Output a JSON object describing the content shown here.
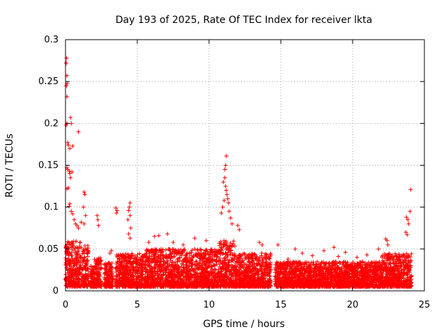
{
  "chart_data": {
    "type": "scatter",
    "title": "Day 193 of 2025, Rate Of TEC Index for receiver lkta",
    "xlabel": "GPS time / hours",
    "ylabel": "ROTI / TECUs",
    "xlim": [
      0,
      25
    ],
    "ylim": [
      0,
      0.3
    ],
    "x_ticks": [
      0,
      5,
      10,
      15,
      20,
      25
    ],
    "x_tick_labels": [
      "0",
      "5",
      "10",
      "15",
      "20",
      "25"
    ],
    "y_ticks": [
      0,
      0.05,
      0.1,
      0.15,
      0.2,
      0.25,
      0.3
    ],
    "y_tick_labels": [
      "0",
      "0.05",
      "0.1",
      "0.15",
      "0.2",
      "0.25",
      "0.3"
    ],
    "grid": true,
    "marker": "+",
    "color": "#ff0000",
    "series": [
      {
        "name": "ROTI",
        "points": [
          [
            0.05,
            0.272
          ],
          [
            0.08,
            0.278
          ],
          [
            0.1,
            0.257
          ],
          [
            0.12,
            0.248
          ],
          [
            0.06,
            0.245
          ],
          [
            0.1,
            0.232
          ],
          [
            0.05,
            0.198
          ],
          [
            0.1,
            0.2
          ],
          [
            0.15,
            0.177
          ],
          [
            0.2,
            0.174
          ],
          [
            0.3,
            0.17
          ],
          [
            0.35,
            0.207
          ],
          [
            0.4,
            0.2
          ],
          [
            0.5,
            0.173
          ],
          [
            0.9,
            0.19
          ],
          [
            0.1,
            0.147
          ],
          [
            0.15,
            0.145
          ],
          [
            0.25,
            0.143
          ],
          [
            0.3,
            0.14
          ],
          [
            0.35,
            0.135
          ],
          [
            0.45,
            0.142
          ],
          [
            0.2,
            0.123
          ],
          [
            0.1,
            0.122
          ],
          [
            0.3,
            0.104
          ],
          [
            0.25,
            0.101
          ],
          [
            0.4,
            0.095
          ],
          [
            0.5,
            0.092
          ],
          [
            0.6,
            0.085
          ],
          [
            0.7,
            0.08
          ],
          [
            0.8,
            0.078
          ],
          [
            0.9,
            0.075
          ],
          [
            1.1,
            0.082
          ],
          [
            1.3,
            0.118
          ],
          [
            1.35,
            0.115
          ],
          [
            1.25,
            0.1
          ],
          [
            1.4,
            0.09
          ],
          [
            1.3,
            0.08
          ],
          [
            2.2,
            0.09
          ],
          [
            2.25,
            0.085
          ],
          [
            2.3,
            0.078
          ],
          [
            3.5,
            0.099
          ],
          [
            3.6,
            0.096
          ],
          [
            3.55,
            0.093
          ],
          [
            3.2,
            0.048
          ],
          [
            3.1,
            0.045
          ],
          [
            4.5,
            0.105
          ],
          [
            4.45,
            0.1
          ],
          [
            4.4,
            0.096
          ],
          [
            4.5,
            0.09
          ],
          [
            4.35,
            0.085
          ],
          [
            4.55,
            0.075
          ],
          [
            4.4,
            0.068
          ],
          [
            4.5,
            0.063
          ],
          [
            11.0,
            0.13
          ],
          [
            11.1,
            0.135
          ],
          [
            11.15,
            0.125
          ],
          [
            11.2,
            0.12
          ],
          [
            11.25,
            0.115
          ],
          [
            11.3,
            0.11
          ],
          [
            11.05,
            0.108
          ],
          [
            11.35,
            0.105
          ],
          [
            11.1,
            0.145
          ],
          [
            11.15,
            0.15
          ],
          [
            11.2,
            0.161
          ],
          [
            10.95,
            0.1
          ],
          [
            10.85,
            0.093
          ],
          [
            11.4,
            0.095
          ],
          [
            11.5,
            0.087
          ],
          [
            11.6,
            0.08
          ],
          [
            12.0,
            0.078
          ],
          [
            12.1,
            0.073
          ],
          [
            23.75,
            0.088
          ],
          [
            23.85,
            0.085
          ],
          [
            23.9,
            0.08
          ],
          [
            24.0,
            0.095
          ],
          [
            24.05,
            0.121
          ],
          [
            23.7,
            0.07
          ],
          [
            23.8,
            0.067
          ],
          [
            22.3,
            0.062
          ],
          [
            22.4,
            0.06
          ],
          [
            22.45,
            0.055
          ],
          [
            14.8,
            0.055
          ],
          [
            16.0,
            0.05
          ],
          [
            18.7,
            0.052
          ],
          [
            19.5,
            0.046
          ],
          [
            21.8,
            0.05
          ],
          [
            13.5,
            0.058
          ],
          [
            13.7,
            0.055
          ],
          [
            6.2,
            0.065
          ],
          [
            6.5,
            0.066
          ],
          [
            7.1,
            0.068
          ],
          [
            9.0,
            0.063
          ],
          [
            9.8,
            0.06
          ],
          [
            7.5,
            0.058
          ],
          [
            8.2,
            0.055
          ],
          [
            5.8,
            0.058
          ],
          [
            16.5,
            0.045
          ],
          [
            17.2,
            0.042
          ],
          [
            20.3,
            0.04
          ],
          [
            21.0,
            0.043
          ],
          [
            15.5,
            0.038
          ],
          [
            18.0,
            0.048
          ],
          [
            19.0,
            0.041
          ]
        ],
        "density_bands": [
          {
            "x_start": 0.0,
            "x_end": 1.6,
            "y_low": 0.005,
            "y_high": 0.06
          },
          {
            "x_start": 1.7,
            "x_end": 2.0,
            "y_low": 0.005,
            "y_high": 0.03
          },
          {
            "x_start": 2.0,
            "x_end": 2.5,
            "y_low": 0.005,
            "y_high": 0.04
          },
          {
            "x_start": 2.7,
            "x_end": 3.3,
            "y_low": 0.005,
            "y_high": 0.035
          },
          {
            "x_start": 3.5,
            "x_end": 5.6,
            "y_low": 0.005,
            "y_high": 0.045
          },
          {
            "x_start": 5.6,
            "x_end": 10.6,
            "y_low": 0.005,
            "y_high": 0.05
          },
          {
            "x_start": 10.6,
            "x_end": 11.8,
            "y_low": 0.005,
            "y_high": 0.06
          },
          {
            "x_start": 11.8,
            "x_end": 14.3,
            "y_low": 0.005,
            "y_high": 0.045
          },
          {
            "x_start": 14.6,
            "x_end": 19.5,
            "y_low": 0.005,
            "y_high": 0.035
          },
          {
            "x_start": 19.5,
            "x_end": 22.0,
            "y_low": 0.005,
            "y_high": 0.035
          },
          {
            "x_start": 22.0,
            "x_end": 24.1,
            "y_low": 0.005,
            "y_high": 0.045
          }
        ]
      }
    ]
  }
}
